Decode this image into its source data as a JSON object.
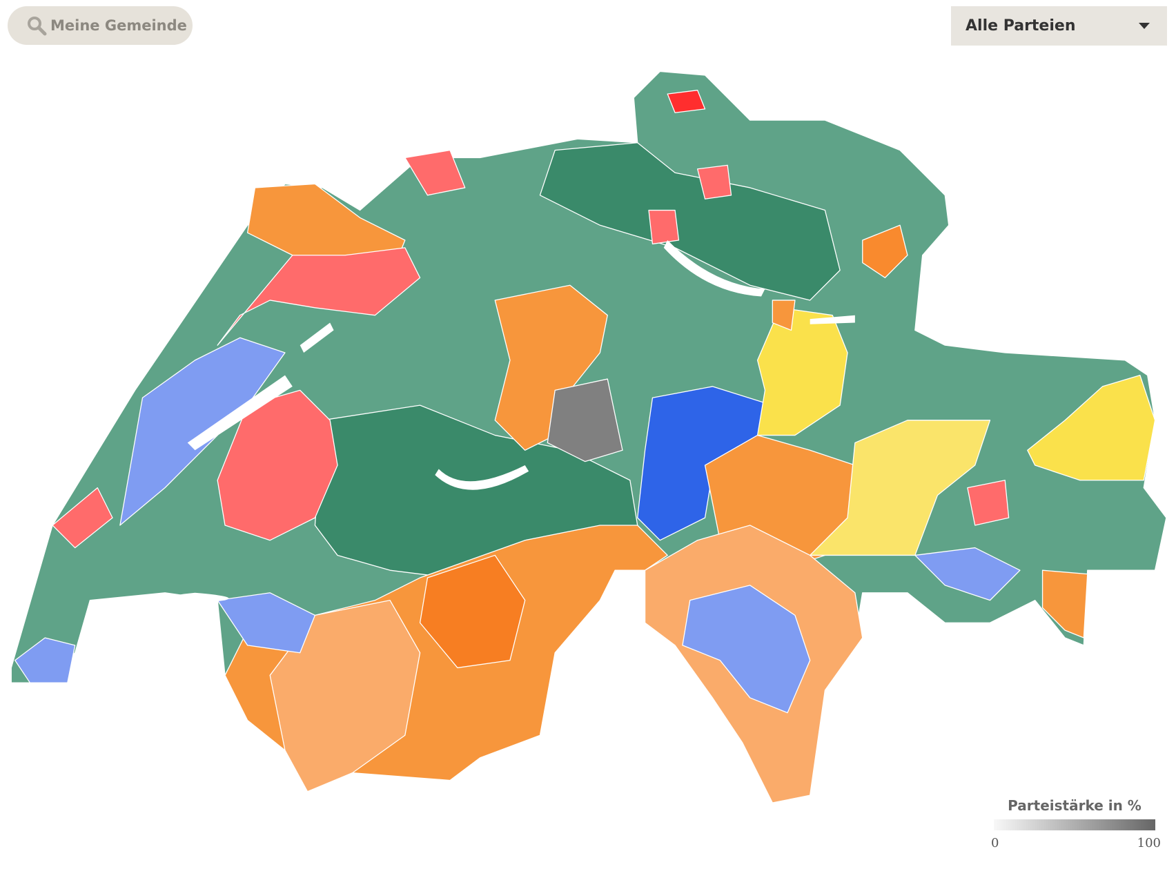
{
  "search": {
    "placeholder": "Meine Gemeinde"
  },
  "party_select": {
    "label": "Alle Parteien"
  },
  "legend": {
    "title": "Parteistärke in %",
    "min": 0,
    "max": 100
  }
}
